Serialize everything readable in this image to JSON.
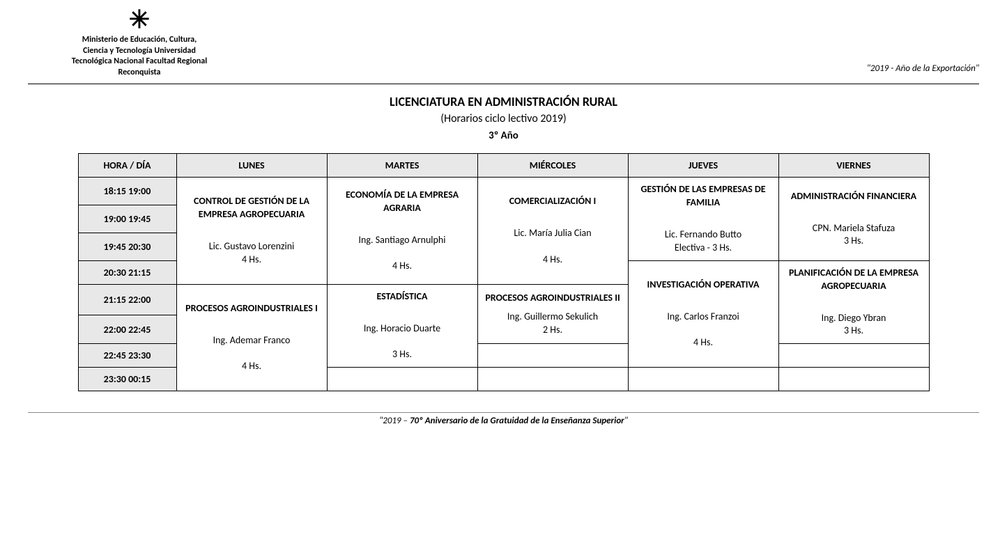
{
  "header": {
    "institution_lines": [
      "Ministerio de Educación, Cultura,",
      "Ciencia y Tecnología      Universidad",
      "Tecnológica Nacional  Facultad Regional",
      "Reconquista"
    ],
    "year_tag": "\"2019 - Año de la Exportación\""
  },
  "titles": {
    "main": "LICENCIATURA EN ADMINISTRACIÓN RURAL",
    "sub": "(Horarios ciclo lectivo 2019)",
    "grade": "3º Año"
  },
  "columns": [
    "HORA / DÍA",
    "LUNES",
    "MARTES",
    "MIÉRCOLES",
    "JUEVES",
    "VIERNES"
  ],
  "times": [
    "18:15  19:00",
    "19:00  19:45",
    "19:45  20:30",
    "20:30  21:15",
    "21:15  22:00",
    "22:00  22:45",
    "22:45  23:30",
    "23:30  00:15"
  ],
  "courses": {
    "lunes1": {
      "name": "CONTROL DE GESTIÓN DE LA EMPRESA AGROPECUARIA",
      "teacher": "Lic. Gustavo Lorenzini",
      "hours": "4 Hs."
    },
    "lunes2": {
      "name": "PROCESOS AGROINDUSTRIALES I",
      "teacher": "Ing. Ademar Franco",
      "hours": "4 Hs."
    },
    "martes1": {
      "name": "ECONOMÍA DE LA EMPRESA AGRARIA",
      "teacher": "Ing. Santiago Arnulphi",
      "hours": "4 Hs."
    },
    "martes2": {
      "name": "ESTADÍSTICA",
      "teacher": "Ing. Horacio Duarte",
      "hours": "3 Hs."
    },
    "miercoles1": {
      "name": "COMERCIALIZACIÓN I",
      "teacher": "Lic. María Julia Cian",
      "hours": "4 Hs."
    },
    "miercoles2": {
      "name": "PROCESOS AGROINDUSTRIALES II",
      "teacher": "Ing. Guillermo Sekulich",
      "hours": "2 Hs."
    },
    "jueves1": {
      "name": "GESTIÓN DE LAS EMPRESAS DE FAMILIA",
      "teacher": "Lic. Fernando Butto",
      "hours": "Electiva - 3 Hs."
    },
    "jueves2": {
      "name": "INVESTIGACIÓN OPERATIVA",
      "teacher": "Ing. Carlos Franzoi",
      "hours": "4 Hs."
    },
    "viernes1": {
      "name": "ADMINISTRACIÓN FINANCIERA",
      "teacher": "CPN. Mariela Stafuza",
      "hours": "3 Hs."
    },
    "viernes2": {
      "name": "PLANIFICACIÓN DE LA EMPRESA AGROPECUARIA",
      "teacher": "Ing. Diego Ybran",
      "hours": "3 Hs."
    }
  },
  "footer": {
    "prefix": "\"2019 – ",
    "bold": "70º Aniversario de la Gratuidad de la Enseñanza Superior",
    "suffix": "\""
  },
  "styling": {
    "header_bg": "#e8e8e8",
    "border_color": "#000000",
    "body_bg": "#ffffff",
    "font": "Calibri",
    "title_fontsize": 18,
    "body_fontsize": 14
  }
}
